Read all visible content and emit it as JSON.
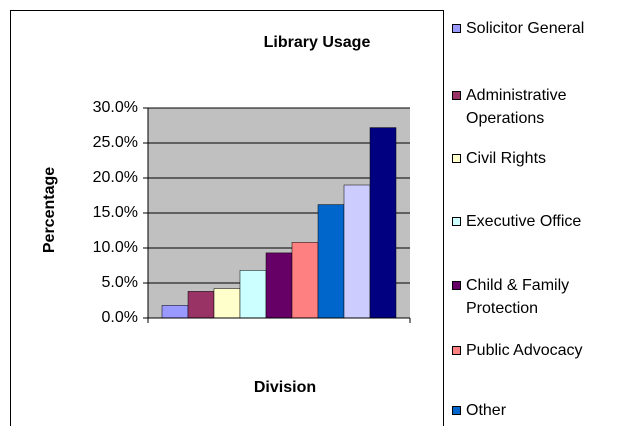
{
  "chart_data": {
    "type": "bar",
    "title": "Library Usage",
    "y_label": "Percentage",
    "x_label": "Division",
    "series": [
      {
        "name": "Solicitor General",
        "color": "#9999ff",
        "values": [
          1.8
        ]
      },
      {
        "name": "Administrative Operations",
        "color": "#993366",
        "values": [
          3.8
        ]
      },
      {
        "name": "Civil Rights",
        "color": "#ffffcc",
        "values": [
          4.2
        ]
      },
      {
        "name": "Executive Office",
        "color": "#ccffff",
        "values": [
          6.8
        ]
      },
      {
        "name": "Child & Family Protection",
        "color": "#660066",
        "values": [
          9.3
        ]
      },
      {
        "name": "Public Advocacy",
        "color": "#ff8080",
        "values": [
          10.8
        ]
      },
      {
        "name": "Other",
        "color": "#0066cc",
        "values": [
          16.2
        ]
      },
      {
        "color": "#ccccff",
        "values": [
          19
        ]
      },
      {
        "color": "#000080",
        "values": [
          27.2
        ]
      }
    ],
    "ylim": [
      0,
      30
    ],
    "yticks": [
      {
        "value": 0,
        "label": "0.0%"
      },
      {
        "value": 5,
        "label": "5.0%"
      },
      {
        "value": 10,
        "label": "10.0%"
      },
      {
        "value": 15,
        "label": "15.0%"
      },
      {
        "value": 20,
        "label": "20.0%"
      },
      {
        "value": 25,
        "label": "25.0%"
      },
      {
        "value": 30,
        "label": "30.0%"
      }
    ],
    "grid": true,
    "plot_background": "#c0c0c0",
    "legend": "right"
  }
}
